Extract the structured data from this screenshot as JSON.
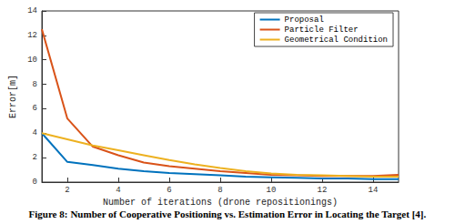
{
  "chart_data": {
    "type": "line",
    "caption": "Figure 8: Number of Cooperative Positioning vs. Estimation Error in Locating the Target [4].",
    "x_label": "Number of iterations (drone repositionings)",
    "y_label": "Error[m]",
    "x": [
      1,
      2,
      3,
      4,
      5,
      6,
      7,
      8,
      9,
      10,
      11,
      12,
      13,
      14,
      15
    ],
    "series": [
      {
        "name": "Proposal",
        "color": "#0072bd",
        "values": [
          4.0,
          1.65,
          1.4,
          1.1,
          0.9,
          0.75,
          0.65,
          0.55,
          0.45,
          0.4,
          0.35,
          0.3,
          0.3,
          0.25,
          0.25
        ]
      },
      {
        "name": "Particle Filter",
        "color": "#d95319",
        "values": [
          12.5,
          5.2,
          2.9,
          2.2,
          1.6,
          1.3,
          1.1,
          0.9,
          0.75,
          0.6,
          0.55,
          0.5,
          0.5,
          0.5,
          0.6
        ]
      },
      {
        "name": "Geometrical Condition",
        "color": "#edb120",
        "values": [
          4.0,
          3.5,
          3.0,
          2.6,
          2.2,
          1.8,
          1.45,
          1.15,
          0.9,
          0.7,
          0.6,
          0.55,
          0.5,
          0.45,
          0.45
        ]
      }
    ],
    "xlim": [
      1,
      15
    ],
    "xticks": [
      2,
      4,
      6,
      8,
      10,
      12,
      14
    ],
    "ylim": [
      0,
      14
    ],
    "yticks": [
      0,
      2,
      4,
      6,
      8,
      10,
      12,
      14
    ],
    "grid": false,
    "legend": "upper right"
  }
}
